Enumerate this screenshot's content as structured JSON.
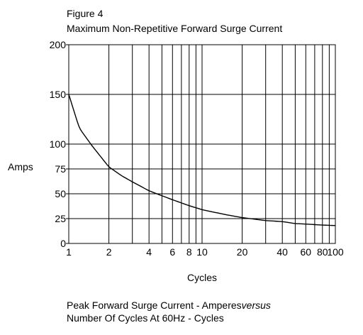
{
  "figure_label": "Figure 4",
  "chart_data": {
    "type": "line",
    "title": "Maximum Non-Repetitive Forward Surge Current",
    "xlabel": "Cycles",
    "ylabel": "Amps",
    "x_scale": "log",
    "xlim": [
      1,
      100
    ],
    "ylim": [
      0,
      200
    ],
    "x_ticks": [
      1,
      2,
      4,
      6,
      8,
      10,
      20,
      40,
      60,
      80,
      100
    ],
    "x_tick_labels": [
      "1",
      "2",
      "4",
      "6",
      "8",
      "10",
      "20",
      "40",
      "60",
      "80",
      "100"
    ],
    "y_ticks": [
      0,
      25,
      50,
      75,
      100,
      150,
      200
    ],
    "y_tick_labels": [
      "0",
      "25",
      "50",
      "75",
      "100",
      "150",
      "200"
    ],
    "grid": true,
    "legend": "none",
    "series": [
      {
        "x": [
          1,
          1.2,
          1.5,
          2,
          2.5,
          3,
          4,
          5,
          6,
          8,
          10,
          15,
          20,
          30,
          40,
          50,
          60,
          80,
          100
        ],
        "y": [
          150,
          116,
          98,
          77,
          68,
          62,
          53,
          48,
          44,
          38,
          34,
          29,
          26,
          23,
          22,
          20,
          19.5,
          18.5,
          18
        ]
      }
    ],
    "caption_line1_prefix": "Peak Forward Surge Current - Amperes",
    "caption_line1_italic": "versus",
    "caption_line2": "Number Of Cycles At 60Hz - Cycles"
  }
}
